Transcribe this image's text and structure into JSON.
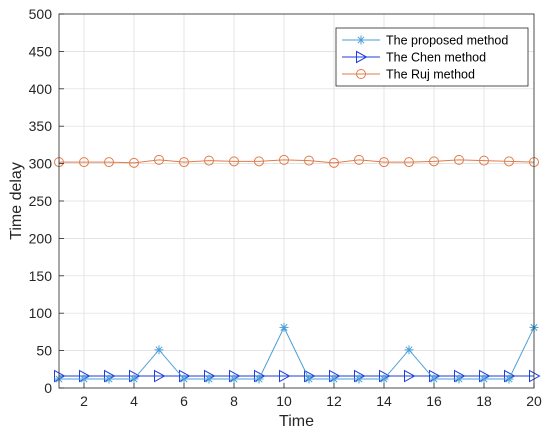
{
  "chart_data": {
    "type": "line",
    "title": "",
    "xlabel": "Time",
    "ylabel": "Time delay",
    "xlim": [
      1,
      20
    ],
    "ylim": [
      0,
      500
    ],
    "xticks": [
      2,
      4,
      6,
      8,
      10,
      12,
      14,
      16,
      18,
      20
    ],
    "yticks": [
      0,
      50,
      100,
      150,
      200,
      250,
      300,
      350,
      400,
      450,
      500
    ],
    "grid": true,
    "legend_position": "top-right",
    "x": [
      1,
      2,
      3,
      4,
      5,
      6,
      7,
      8,
      9,
      10,
      11,
      12,
      13,
      14,
      15,
      16,
      17,
      18,
      19,
      20
    ],
    "series": [
      {
        "name": "The proposed method",
        "color": "#4a9fd8",
        "marker": "asterisk",
        "values": [
          12,
          12,
          12,
          12,
          51,
          12,
          12,
          12,
          12,
          81,
          12,
          12,
          12,
          12,
          51,
          12,
          12,
          12,
          12,
          81
        ]
      },
      {
        "name": "The Chen method",
        "color": "#1f3fdc",
        "marker": "triangle-right",
        "values": [
          16,
          16,
          16,
          16,
          16,
          16,
          16,
          16,
          16,
          16,
          16,
          16,
          16,
          16,
          16,
          16,
          16,
          16,
          16,
          16
        ]
      },
      {
        "name": "The Ruj method",
        "color": "#e07b4a",
        "marker": "circle",
        "values": [
          302,
          302,
          302,
          301,
          305,
          302,
          304,
          303,
          303,
          305,
          304,
          301,
          305,
          302,
          302,
          303,
          305,
          304,
          303,
          302
        ]
      }
    ]
  }
}
